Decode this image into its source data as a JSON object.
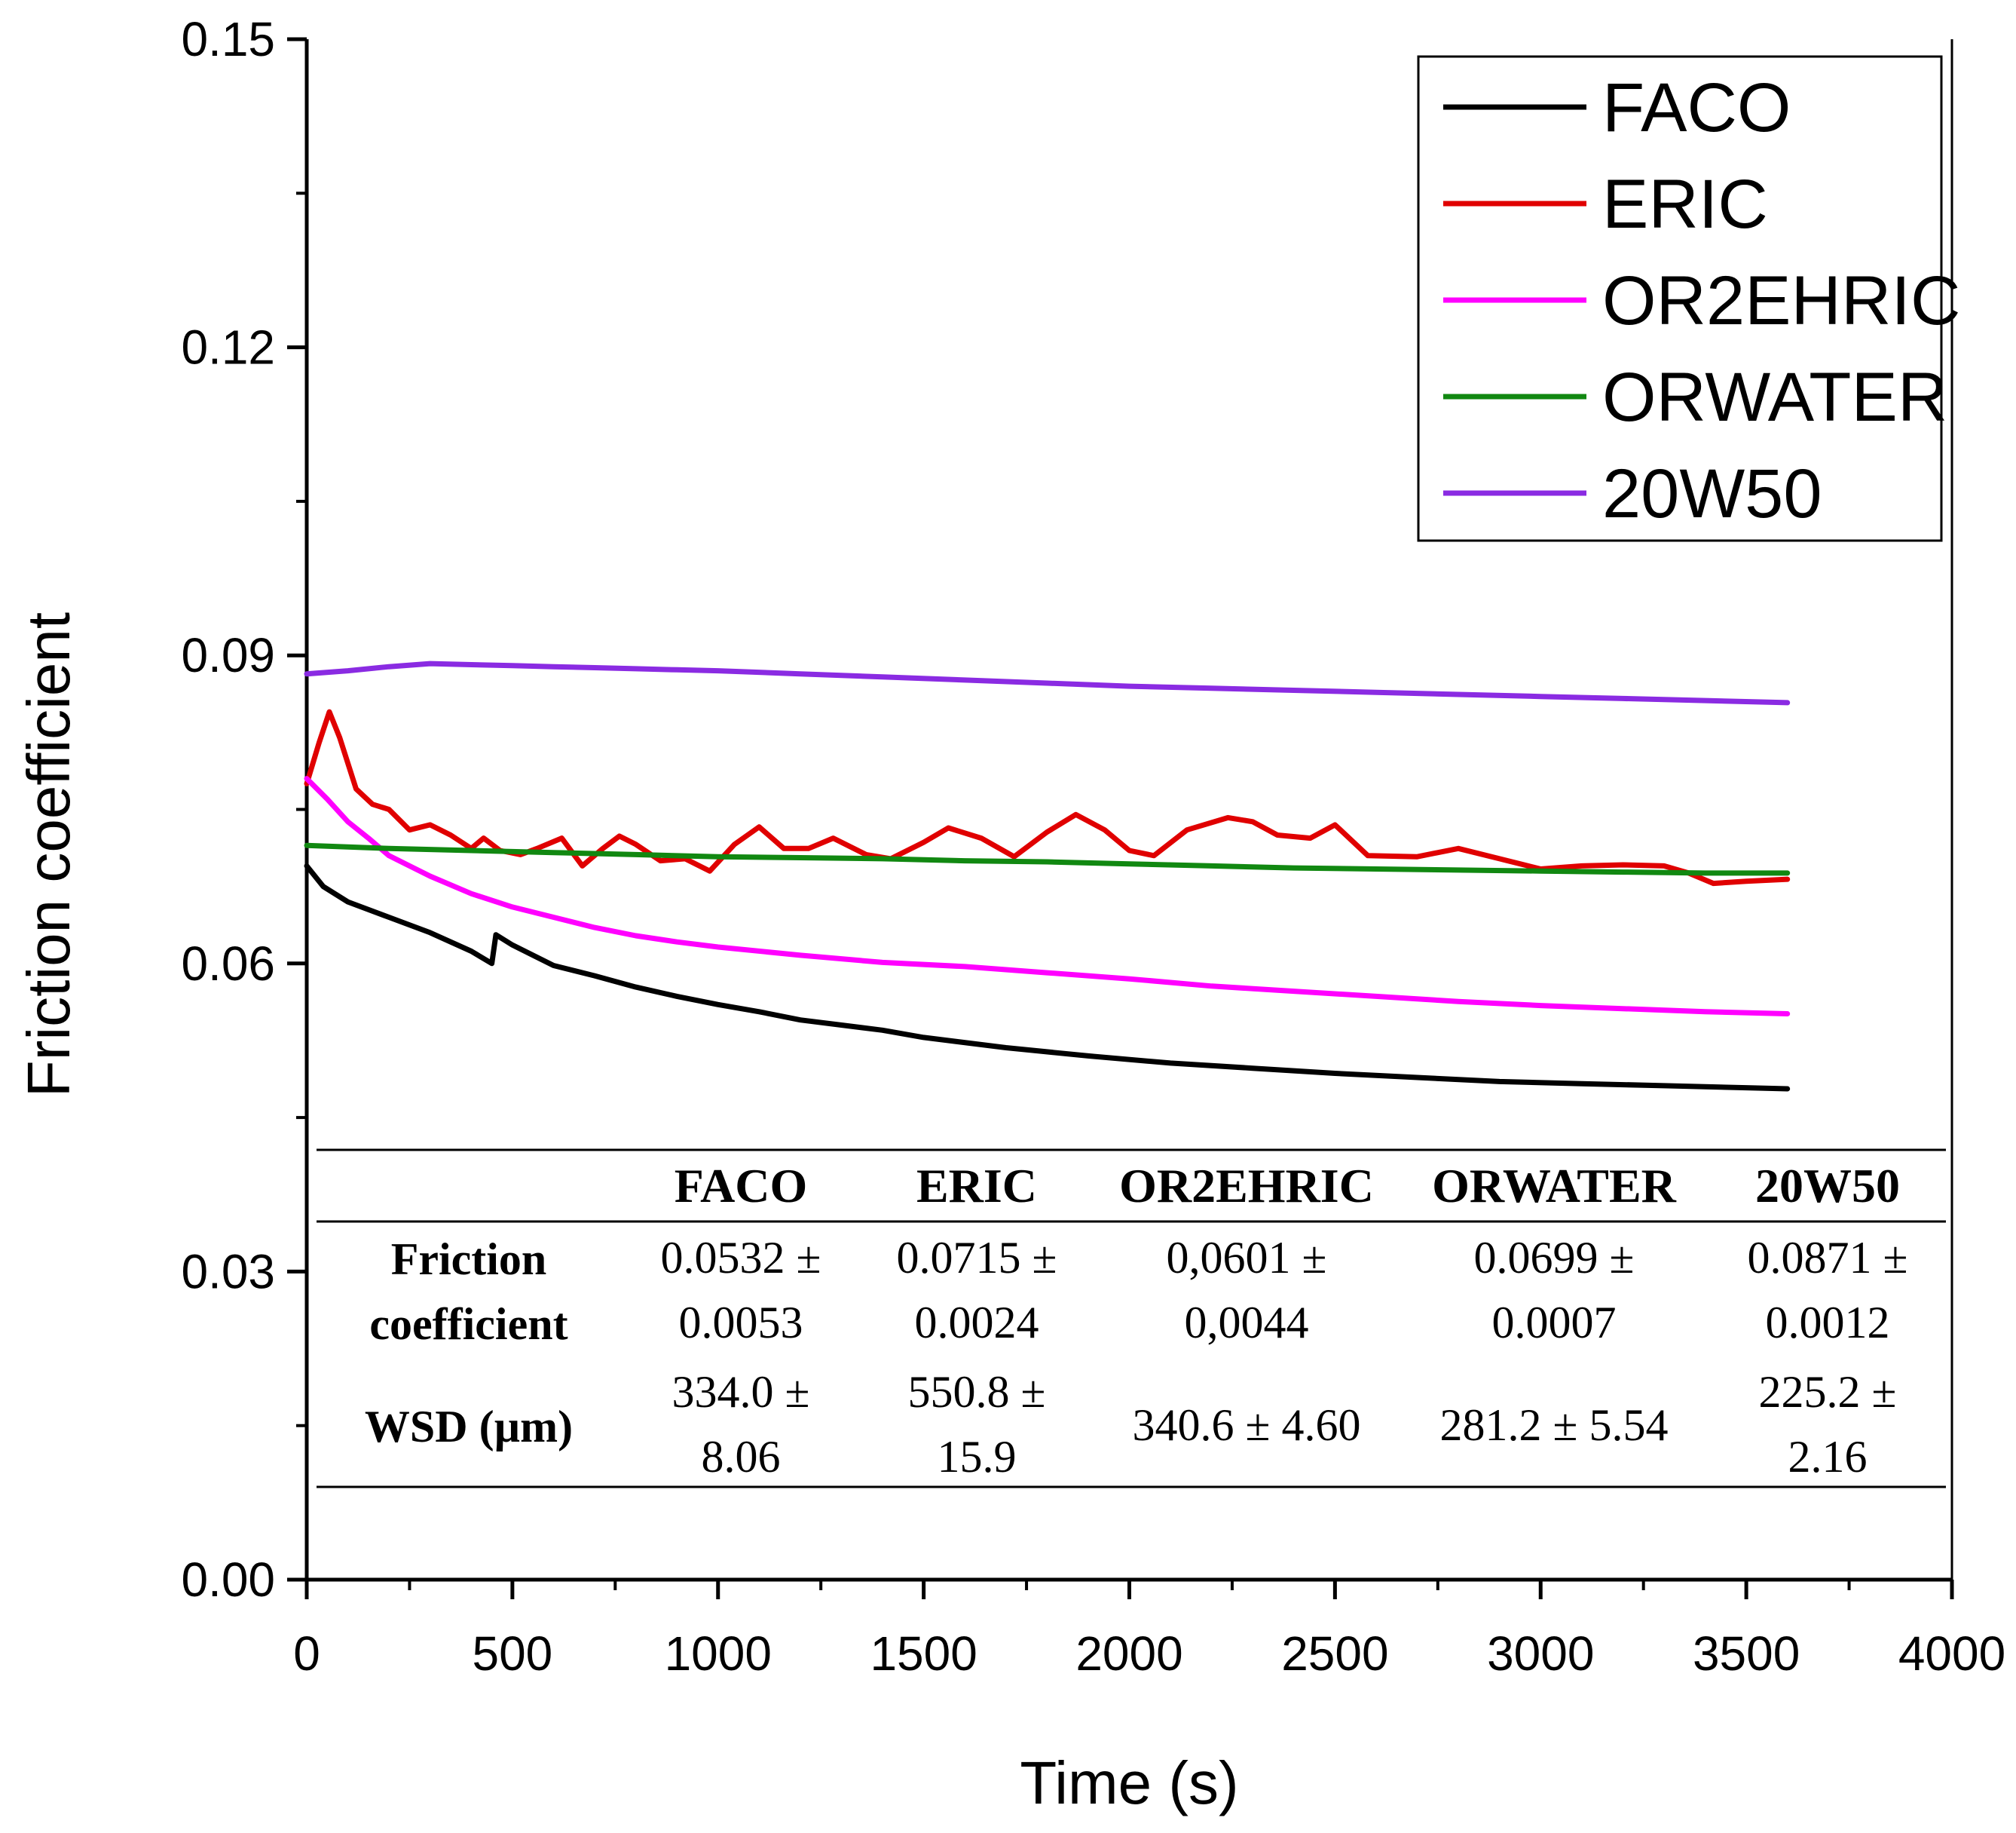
{
  "chart_data": {
    "type": "line",
    "title": "",
    "xlabel": "Time (s)",
    "ylabel": "Friction coefficient",
    "xlim": [
      0,
      4000
    ],
    "ylim": [
      0,
      0.15
    ],
    "x_ticks": [
      "0",
      "500",
      "1000",
      "1500",
      "2000",
      "2500",
      "3000",
      "3500",
      "4000"
    ],
    "y_ticks": [
      "0.00",
      "0.03",
      "0.06",
      "0.09",
      "0.12",
      "0.15"
    ],
    "grid": false,
    "legend_position": "top-right",
    "series": [
      {
        "name": "FACO",
        "color": "#000000",
        "points": [
          [
            0,
            0.0695
          ],
          [
            40,
            0.0675
          ],
          [
            100,
            0.066
          ],
          [
            200,
            0.0645
          ],
          [
            300,
            0.063
          ],
          [
            400,
            0.0612
          ],
          [
            450,
            0.06
          ],
          [
            460,
            0.0628
          ],
          [
            500,
            0.0618
          ],
          [
            600,
            0.0598
          ],
          [
            700,
            0.0588
          ],
          [
            800,
            0.0577
          ],
          [
            900,
            0.0568
          ],
          [
            1000,
            0.056
          ],
          [
            1100,
            0.0553
          ],
          [
            1200,
            0.0545
          ],
          [
            1300,
            0.054
          ],
          [
            1400,
            0.0535
          ],
          [
            1500,
            0.0528
          ],
          [
            1700,
            0.0518
          ],
          [
            1900,
            0.051
          ],
          [
            2100,
            0.0503
          ],
          [
            2300,
            0.0498
          ],
          [
            2500,
            0.0493
          ],
          [
            2700,
            0.0489
          ],
          [
            2900,
            0.0485
          ],
          [
            3100,
            0.0483
          ],
          [
            3300,
            0.0481
          ],
          [
            3500,
            0.0479
          ],
          [
            3600,
            0.0478
          ]
        ]
      },
      {
        "name": "ERIC",
        "color": "#e00000",
        "points": [
          [
            0,
            0.0775
          ],
          [
            30,
            0.0815
          ],
          [
            55,
            0.0845
          ],
          [
            80,
            0.082
          ],
          [
            120,
            0.077
          ],
          [
            160,
            0.0755
          ],
          [
            200,
            0.075
          ],
          [
            250,
            0.073
          ],
          [
            300,
            0.0735
          ],
          [
            350,
            0.0725
          ],
          [
            400,
            0.0712
          ],
          [
            430,
            0.0722
          ],
          [
            470,
            0.071
          ],
          [
            520,
            0.0706
          ],
          [
            560,
            0.0712
          ],
          [
            620,
            0.0722
          ],
          [
            670,
            0.0695
          ],
          [
            720,
            0.0712
          ],
          [
            760,
            0.0724
          ],
          [
            800,
            0.0716
          ],
          [
            860,
            0.07
          ],
          [
            920,
            0.0702
          ],
          [
            980,
            0.069
          ],
          [
            1040,
            0.0716
          ],
          [
            1100,
            0.0733
          ],
          [
            1160,
            0.0712
          ],
          [
            1220,
            0.0712
          ],
          [
            1280,
            0.0722
          ],
          [
            1360,
            0.0706
          ],
          [
            1420,
            0.0702
          ],
          [
            1500,
            0.0718
          ],
          [
            1560,
            0.0732
          ],
          [
            1640,
            0.0722
          ],
          [
            1720,
            0.0704
          ],
          [
            1800,
            0.0728
          ],
          [
            1870,
            0.0745
          ],
          [
            1940,
            0.073
          ],
          [
            2000,
            0.071
          ],
          [
            2060,
            0.0705
          ],
          [
            2140,
            0.073
          ],
          [
            2240,
            0.0742
          ],
          [
            2300,
            0.0738
          ],
          [
            2360,
            0.0725
          ],
          [
            2440,
            0.0722
          ],
          [
            2500,
            0.0735
          ],
          [
            2580,
            0.0705
          ],
          [
            2700,
            0.0704
          ],
          [
            2800,
            0.0712
          ],
          [
            2900,
            0.0702
          ],
          [
            3000,
            0.0692
          ],
          [
            3100,
            0.0695
          ],
          [
            3200,
            0.0696
          ],
          [
            3300,
            0.0695
          ],
          [
            3360,
            0.0688
          ],
          [
            3420,
            0.0678
          ],
          [
            3500,
            0.068
          ],
          [
            3600,
            0.0682
          ]
        ]
      },
      {
        "name": "OR2EHRIC",
        "color": "#ff00ff",
        "points": [
          [
            0,
            0.078
          ],
          [
            50,
            0.076
          ],
          [
            100,
            0.0738
          ],
          [
            150,
            0.0722
          ],
          [
            200,
            0.0705
          ],
          [
            300,
            0.0685
          ],
          [
            400,
            0.0668
          ],
          [
            500,
            0.0655
          ],
          [
            600,
            0.0645
          ],
          [
            700,
            0.0635
          ],
          [
            800,
            0.0627
          ],
          [
            900,
            0.0621
          ],
          [
            1000,
            0.0616
          ],
          [
            1200,
            0.0608
          ],
          [
            1400,
            0.0601
          ],
          [
            1600,
            0.0597
          ],
          [
            1800,
            0.0591
          ],
          [
            2000,
            0.0585
          ],
          [
            2200,
            0.0578
          ],
          [
            2400,
            0.0573
          ],
          [
            2600,
            0.0568
          ],
          [
            2800,
            0.0563
          ],
          [
            3000,
            0.0559
          ],
          [
            3200,
            0.0556
          ],
          [
            3400,
            0.0553
          ],
          [
            3600,
            0.0551
          ]
        ]
      },
      {
        "name": "ORWATER",
        "color": "#118811",
        "points": [
          [
            0,
            0.0715
          ],
          [
            200,
            0.0712
          ],
          [
            400,
            0.071
          ],
          [
            600,
            0.0708
          ],
          [
            800,
            0.0706
          ],
          [
            1000,
            0.0704
          ],
          [
            1200,
            0.0703
          ],
          [
            1400,
            0.0702
          ],
          [
            1600,
            0.07
          ],
          [
            1800,
            0.0699
          ],
          [
            2000,
            0.0697
          ],
          [
            2200,
            0.0695
          ],
          [
            2400,
            0.0693
          ],
          [
            2600,
            0.0692
          ],
          [
            2800,
            0.0691
          ],
          [
            3000,
            0.069
          ],
          [
            3200,
            0.0689
          ],
          [
            3400,
            0.0688
          ],
          [
            3600,
            0.0688
          ]
        ]
      },
      {
        "name": "20W50",
        "color": "#8a2be2",
        "points": [
          [
            0,
            0.0882
          ],
          [
            100,
            0.0885
          ],
          [
            200,
            0.0889
          ],
          [
            300,
            0.0892
          ],
          [
            400,
            0.0891
          ],
          [
            500,
            0.089
          ],
          [
            600,
            0.0889
          ],
          [
            700,
            0.0888
          ],
          [
            800,
            0.0887
          ],
          [
            900,
            0.0886
          ],
          [
            1000,
            0.0885
          ],
          [
            1200,
            0.0882
          ],
          [
            1400,
            0.0879
          ],
          [
            1600,
            0.0876
          ],
          [
            1800,
            0.0873
          ],
          [
            2000,
            0.087
          ],
          [
            2200,
            0.0868
          ],
          [
            2400,
            0.0866
          ],
          [
            2600,
            0.0864
          ],
          [
            2800,
            0.0862
          ],
          [
            3000,
            0.086
          ],
          [
            3200,
            0.0858
          ],
          [
            3400,
            0.0856
          ],
          [
            3600,
            0.0854
          ]
        ]
      }
    ],
    "table": {
      "columns": [
        "FACO",
        "ERIC",
        "OR2EHRIC",
        "ORWATER",
        "20W50"
      ],
      "row1_label": [
        "Friction",
        "coefficient"
      ],
      "row1_values": [
        [
          "0.0532 ±",
          "0.0053"
        ],
        [
          "0.0715 ±",
          "0.0024"
        ],
        [
          "0,0601 ±",
          "0,0044"
        ],
        [
          "0.0699 ±",
          "0.0007"
        ],
        [
          "0.0871 ±",
          "0.0012"
        ]
      ],
      "row2_label": [
        "WSD (µm)"
      ],
      "row2_values": [
        [
          "334.0 ±",
          "8.06"
        ],
        [
          "550.8 ±",
          "15.9"
        ],
        [
          "340.6 ± 4.60"
        ],
        [
          "281.2 ± 5.54"
        ],
        [
          "225.2 ±",
          "2.16"
        ]
      ]
    }
  }
}
